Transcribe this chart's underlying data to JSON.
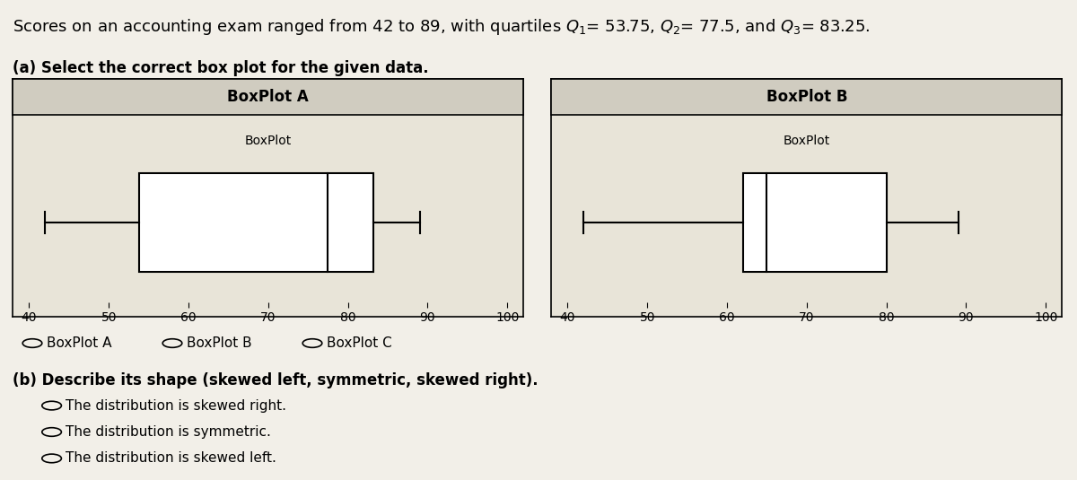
{
  "part_a_label": "(a) Select the correct box plot for the given data.",
  "part_b_label": "(b) Describe its shape (skewed left, symmetric, skewed right).",
  "boxplot_a": {
    "title": "BoxPlot A",
    "subtitle": "BoxPlot",
    "min": 42,
    "q1": 53.75,
    "q2": 77.5,
    "q3": 83.25,
    "max": 89,
    "xmin": 40,
    "xmax": 100
  },
  "boxplot_b": {
    "title": "BoxPlot B",
    "subtitle": "BoxPlot",
    "min": 42,
    "q1": 62,
    "q2": 65,
    "q3": 80,
    "max": 89,
    "xmin": 40,
    "xmax": 100
  },
  "radio_options_a": [
    "BoxPlot A",
    "BoxPlot B",
    "BoxPlot C"
  ],
  "radio_options_b": [
    "The distribution is skewed right.",
    "The distribution is symmetric.",
    "The distribution is skewed left."
  ],
  "bg_color": "#f2efe8",
  "panel_bg": "#e8e4d8",
  "panel_header_bg": "#d0ccc0",
  "box_face": "#ffffff",
  "box_edge": "#000000",
  "line_color": "#000000",
  "title_fontsize": 13,
  "radio_fontsize": 11,
  "label_fontsize": 12
}
